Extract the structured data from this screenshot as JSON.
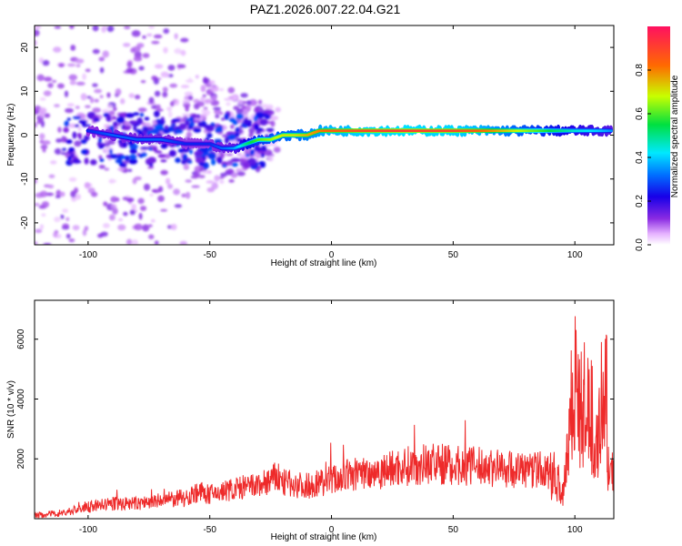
{
  "title": "PAZ1.2026.007.22.04.G21",
  "colors": {
    "snr_line": "#ee2a2a",
    "ridge": [
      "#2a00d6",
      "#0078ff",
      "#00e0ff",
      "#00e060",
      "#d8ff00",
      "#ff6a00",
      "#ff1040"
    ]
  },
  "chart_data": [
    {
      "type": "heatmap",
      "title": "PAZ1.2026.007.22.04.G21",
      "xlabel": "Height of straight line (km)",
      "ylabel": "Frequency (Hz)",
      "xlim": [
        -122,
        116
      ],
      "ylim": [
        -25,
        25
      ],
      "xticks": [
        -100,
        -50,
        0,
        50,
        100
      ],
      "yticks": [
        -20,
        -10,
        0,
        10,
        20
      ],
      "grid": false,
      "colorbar": {
        "label": "Normalized spectral amplitude",
        "range": [
          0,
          1
        ],
        "ticks": [
          "0.0",
          "0.2",
          "0.4",
          "0.6",
          "0.8"
        ]
      },
      "ridge": {
        "x": [
          -100,
          -90,
          -80,
          -70,
          -60,
          -50,
          -45,
          -40,
          -35,
          -30,
          -25,
          -20,
          -15,
          -10,
          -5,
          0,
          5,
          10,
          20,
          30,
          40,
          50,
          60,
          70,
          80,
          90,
          100,
          110,
          115
        ],
        "frequency": [
          1,
          0,
          -1,
          -1,
          -2,
          -2,
          -3,
          -3,
          -2,
          -1,
          -1,
          0,
          0,
          0,
          1,
          1,
          1,
          1,
          1,
          1,
          1,
          1,
          1,
          1,
          1,
          1,
          1,
          1,
          1
        ],
        "amplitude": [
          0.25,
          0.3,
          0.3,
          0.3,
          0.25,
          0.25,
          0.3,
          0.35,
          0.5,
          0.6,
          0.65,
          0.7,
          0.7,
          0.75,
          0.8,
          0.85,
          0.85,
          0.88,
          0.9,
          0.92,
          0.9,
          0.9,
          0.85,
          0.75,
          0.65,
          0.55,
          0.45,
          0.4,
          0.35
        ]
      }
    },
    {
      "type": "line",
      "xlabel": "Height of straight line (km)",
      "ylabel": "SNR (10 * v/v)",
      "xlim": [
        -122,
        116
      ],
      "ylim": [
        0,
        7300
      ],
      "xticks": [
        -100,
        -50,
        0,
        50,
        100
      ],
      "yticks": [
        2000,
        4000,
        6000
      ],
      "grid": false,
      "series": [
        {
          "name": "SNR",
          "x": [
            -122,
            -110,
            -100,
            -90,
            -80,
            -70,
            -60,
            -55,
            -50,
            -40,
            -30,
            -22,
            -20,
            -10,
            0,
            10,
            20,
            30,
            40,
            50,
            60,
            70,
            80,
            85,
            90,
            93,
            95,
            97,
            99,
            100,
            102,
            105,
            108,
            110,
            112,
            113,
            114,
            115,
            116
          ],
          "values": [
            100,
            200,
            400,
            500,
            500,
            600,
            700,
            900,
            800,
            1000,
            1100,
            1400,
            1200,
            1100,
            1300,
            1500,
            1600,
            1750,
            1850,
            1800,
            1750,
            1700,
            1600,
            1650,
            1500,
            1300,
            800,
            2500,
            4200,
            4800,
            3500,
            3800,
            3000,
            2800,
            3500,
            4200,
            900,
            1400,
            1600
          ]
        }
      ]
    }
  ]
}
